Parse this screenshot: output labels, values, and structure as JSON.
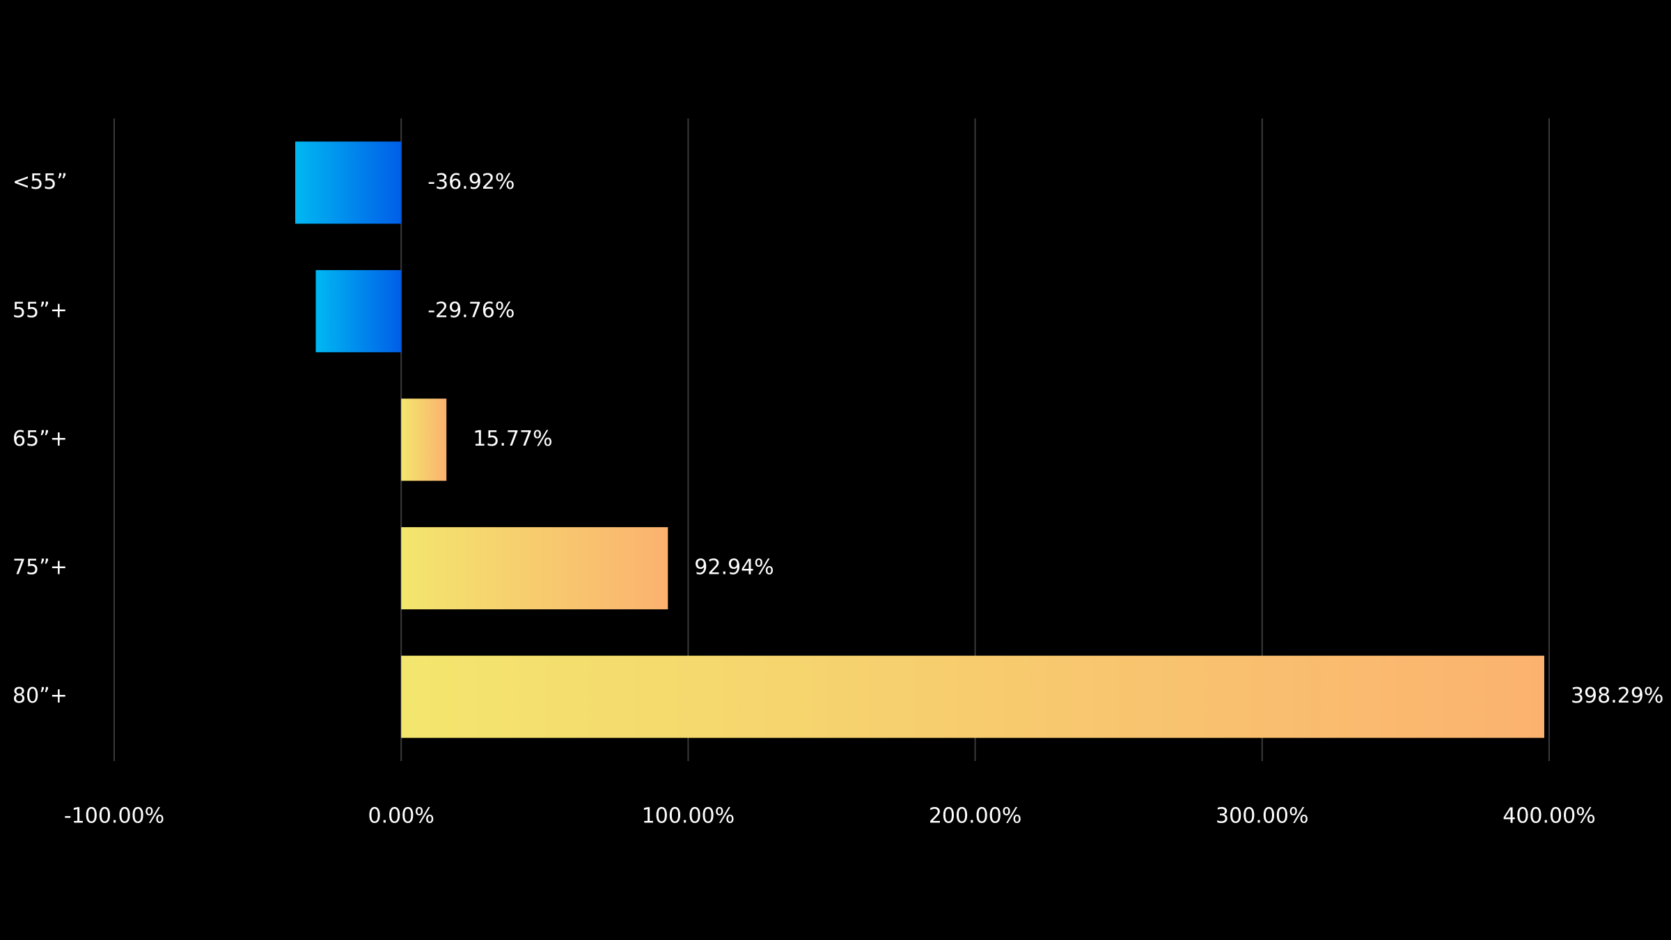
{
  "chart_data": {
    "type": "bar",
    "orientation": "horizontal",
    "categories": [
      "<55”",
      "55”+",
      "65”+",
      "75”+",
      "80”+"
    ],
    "values": [
      -36.92,
      -29.76,
      15.77,
      92.94,
      398.29
    ],
    "value_labels": [
      "-36.92%",
      "-29.76%",
      "15.77%",
      "92.94%",
      "398.29%"
    ],
    "negative_gradient": [
      "#00b8f2",
      "#005ee8"
    ],
    "positive_gradient": [
      "#f3e66e",
      "#fbb26f"
    ],
    "xlim": [
      -100,
      400
    ],
    "xticks": [
      {
        "value": -100,
        "label": "-100.00%"
      },
      {
        "value": 0,
        "label": "0.00%"
      },
      {
        "value": 100,
        "label": "100.00%"
      },
      {
        "value": 200,
        "label": "200.00%"
      },
      {
        "value": 300,
        "label": "300.00%"
      },
      {
        "value": 400,
        "label": "400.00%"
      }
    ],
    "grid": true
  }
}
